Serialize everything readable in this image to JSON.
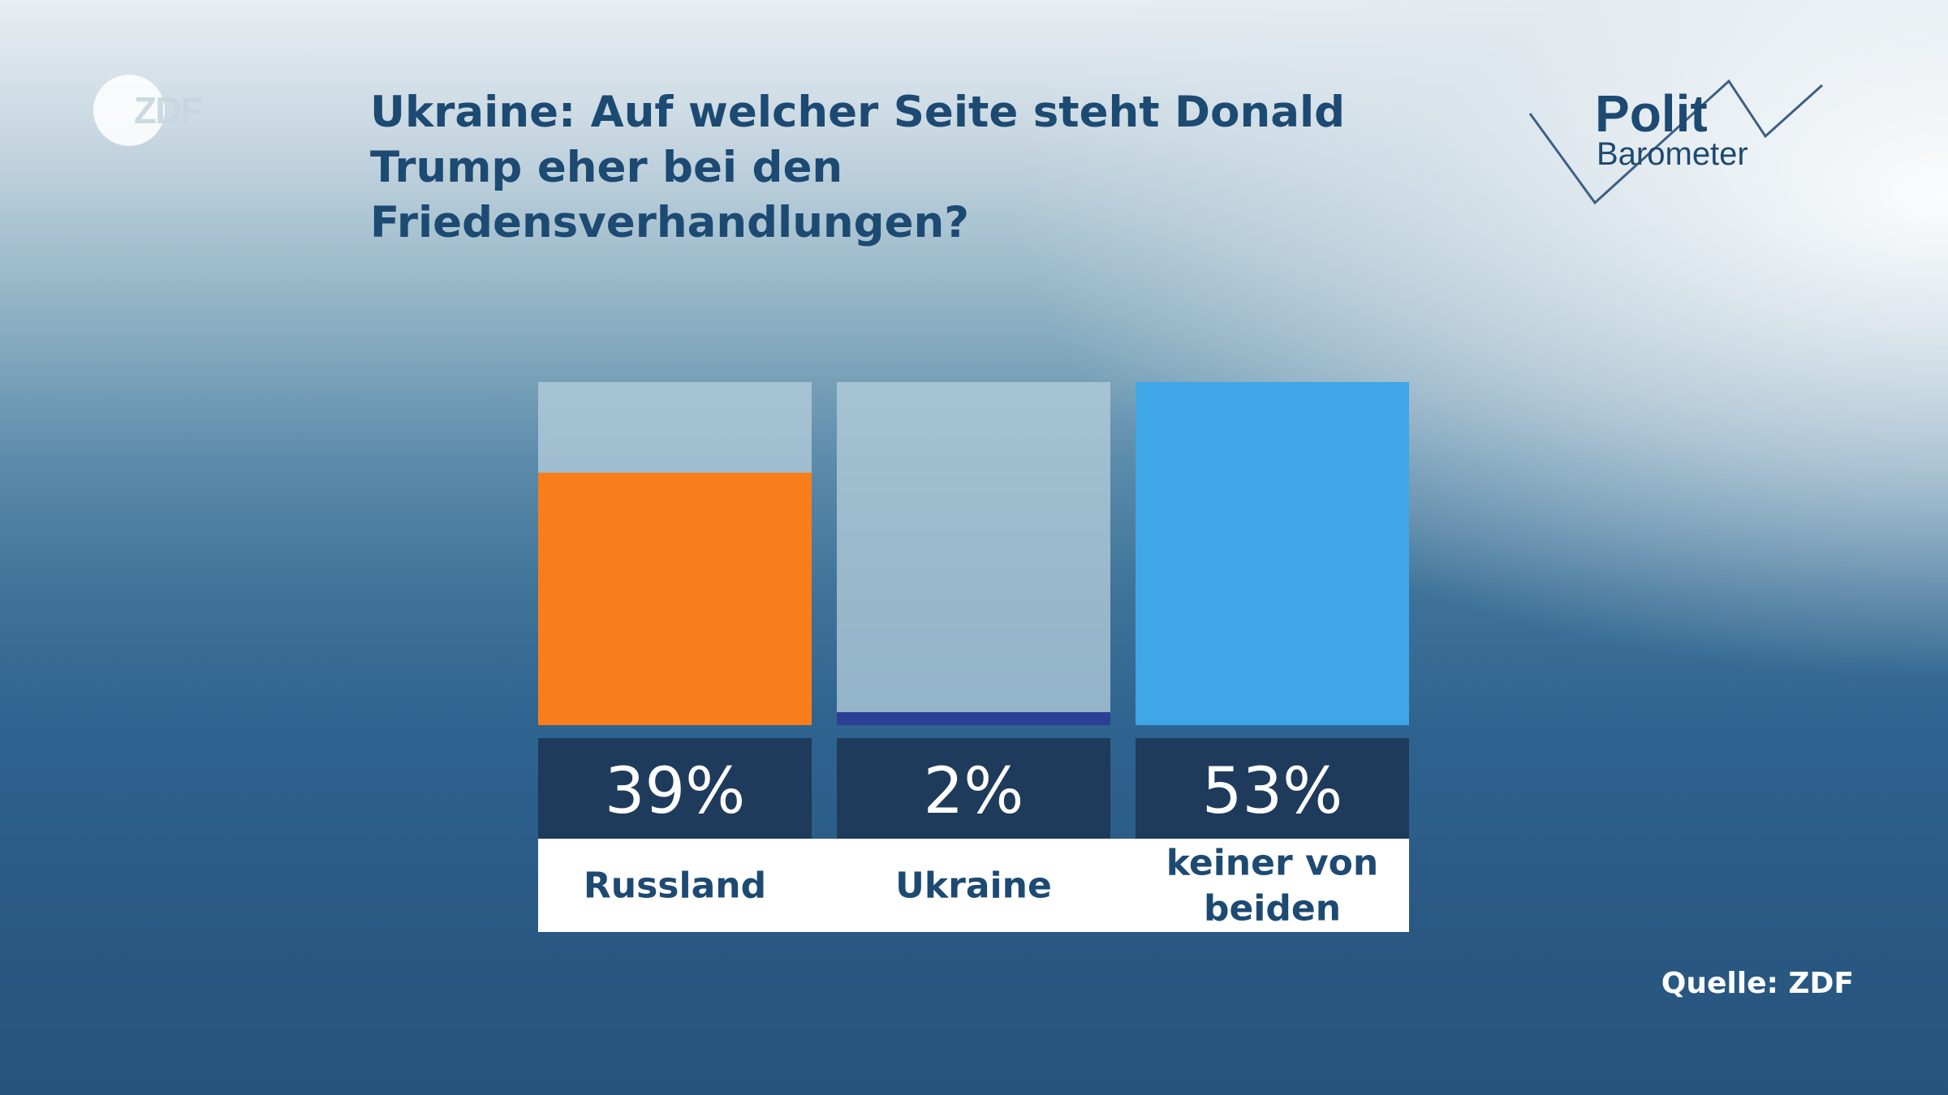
{
  "header": {
    "broadcaster_logo": "ZDF",
    "title": "Ukraine: Auf welcher Seite steht Donald Trump eher bei den Friedensverhandlungen?",
    "brand_line1": "Polit",
    "brand_line2": "Barometer"
  },
  "footer": {
    "source": "Quelle: ZDF"
  },
  "colors": {
    "russland": "#fa7d1b",
    "ukraine": "#2b3f95",
    "keiner": "#3fa6e8",
    "bar_track": "#b7cfdc",
    "value_box": "#1e3b5c",
    "label_text": "#1d4a72",
    "title_text": "#1d4a72"
  },
  "chart_data": {
    "type": "bar",
    "categories": [
      "Russland",
      "Ukraine",
      "keiner von beiden"
    ],
    "values": [
      39,
      2,
      53
    ],
    "value_labels": [
      "39%",
      "2%",
      "53%"
    ],
    "ylim": [
      0,
      53
    ],
    "grid": false,
    "legend": "none"
  }
}
